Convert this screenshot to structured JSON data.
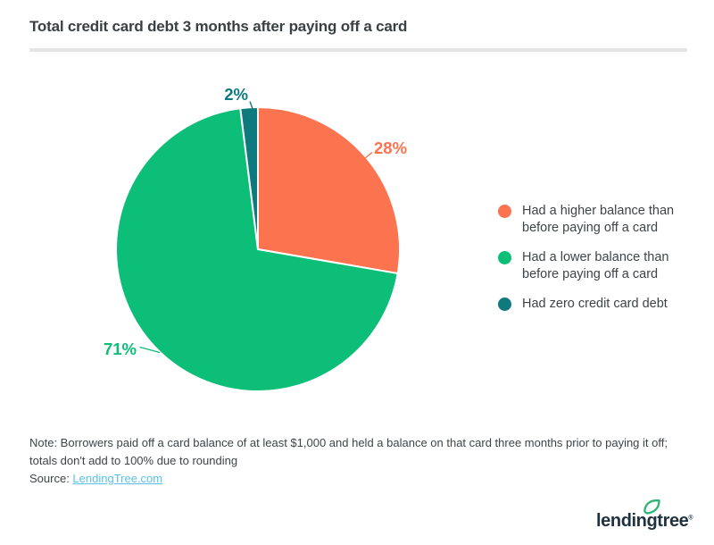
{
  "header": {
    "title": "Total credit card debt 3 months after paying off a card"
  },
  "chart_data": {
    "type": "pie",
    "title": "Total credit card debt 3 months after paying off a card",
    "start_angle_deg": 0,
    "direction": "clockwise",
    "legend_position": "right",
    "values_sum": 101,
    "segments": [
      {
        "id": "higher",
        "label": "Had a higher balance than before paying off a card",
        "value": 28,
        "pct_label": "28%",
        "color": "#fc7350"
      },
      {
        "id": "lower",
        "label": "Had a lower balance than before paying off a card",
        "value": 71,
        "pct_label": "71%",
        "color": "#0dbe78"
      },
      {
        "id": "zero",
        "label": "Had zero credit card debt",
        "value": 2,
        "pct_label": "2%",
        "color": "#0f7a7e"
      }
    ]
  },
  "note": {
    "text": "Note: Borrowers paid off a card balance of at least $1,000 and held a balance on that card three months prior to paying it off; totals don't add to 100% due to rounding",
    "source_label": "Source: ",
    "source_link_text": "LendingTree.com"
  },
  "footer": {
    "logo_text": "lendingtree",
    "registered_mark": "®"
  },
  "colors": {
    "accent_orange": "#fc7350",
    "accent_green": "#0dbe78",
    "accent_teal": "#0f7a7e",
    "link_blue": "#5bc0e7",
    "logo_navy": "#1f3240",
    "leaf_green": "#2db673",
    "divider_gray": "#e4e4e4",
    "text_dark": "#3f4447"
  }
}
